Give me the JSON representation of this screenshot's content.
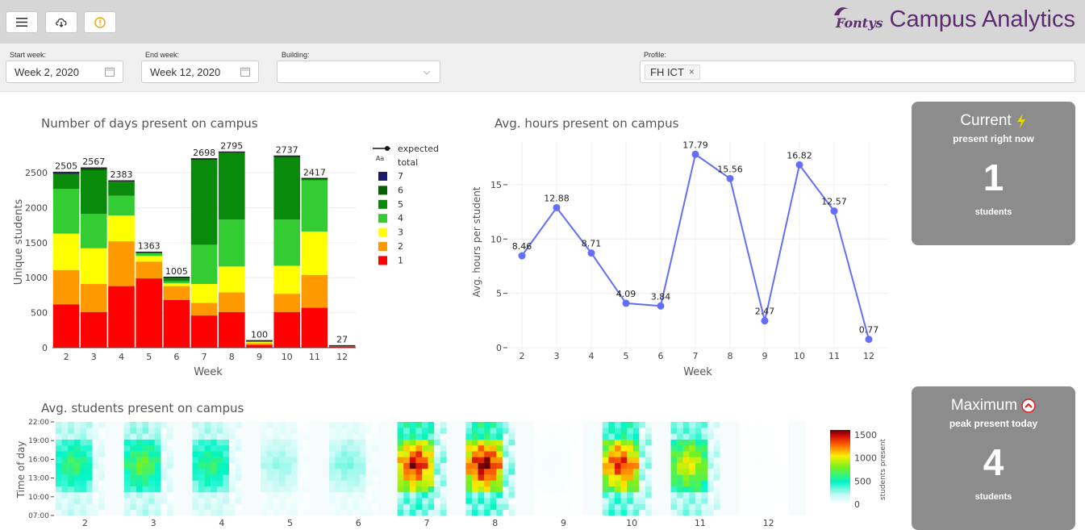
{
  "toolbar": {
    "menu_icon": "hamburger-menu-icon",
    "download_icon": "cloud-download-icon",
    "info_icon": "info-circle-icon",
    "info_color": "#f0a400"
  },
  "brand": {
    "logo_text": "Fontys",
    "title": "Campus Analytics",
    "color": "#5b2c6f"
  },
  "filters": {
    "start_week": {
      "label": "Start week:",
      "value": "Week 2, 2020"
    },
    "end_week": {
      "label": "End week:",
      "value": "Week 12, 2020"
    },
    "building": {
      "label": "Building:",
      "value": ""
    },
    "profile": {
      "label": "Profile:",
      "chips": [
        "FH ICT"
      ]
    }
  },
  "days_chart": {
    "title": "Number of days present on campus",
    "ylabel": "Unique students",
    "xlabel": "Week",
    "yticks": [
      "0",
      "500",
      "1000",
      "1500",
      "2000",
      "2500"
    ],
    "weeks": [
      "2",
      "3",
      "4",
      "5",
      "6",
      "7",
      "8",
      "9",
      "10",
      "11",
      "12"
    ],
    "legend_title": "Aa",
    "legend_items": [
      {
        "label": "expected",
        "type": "line"
      },
      {
        "label": "total",
        "type": "text"
      },
      {
        "label": "7",
        "color": "#1a1a6e"
      },
      {
        "label": "6",
        "color": "#006400"
      },
      {
        "label": "5",
        "color": "#0a8a0a"
      },
      {
        "label": "4",
        "color": "#33cc33"
      },
      {
        "label": "3",
        "color": "#ffff00"
      },
      {
        "label": "2",
        "color": "#ff9900"
      },
      {
        "label": "1",
        "color": "#ff0000"
      }
    ]
  },
  "hours_chart": {
    "title": "Avg. hours present on campus",
    "ylabel": "Avg. hours per student",
    "xlabel": "Week",
    "yticks": [
      "0",
      "5",
      "10",
      "15"
    ],
    "line_color": "#636efa"
  },
  "heatmap": {
    "title": "Avg. students present on campus",
    "ylabel": "Time of day",
    "yticks": [
      "22:00",
      "19:00",
      "16:00",
      "13:00",
      "10:00",
      "07:00"
    ],
    "weeks": [
      "2",
      "3",
      "4",
      "5",
      "6",
      "7",
      "8",
      "9",
      "10",
      "11",
      "12"
    ],
    "colorbar_label": "students present",
    "colorbar_ticks": [
      "1500",
      "1000",
      "500",
      "0"
    ]
  },
  "kpi_current": {
    "title": "Current",
    "icon": "lightning-icon",
    "subtitle": "present right now",
    "value": "1",
    "unit": "students"
  },
  "kpi_maximum": {
    "title": "Maximum",
    "icon": "chevron-up-circle-icon",
    "subtitle": "peak present today",
    "value": "4",
    "unit": "students"
  },
  "chart_data": [
    {
      "type": "bar",
      "title": "Number of days present on campus",
      "xlabel": "Week",
      "ylabel": "Unique students",
      "ylim": [
        0,
        2950
      ],
      "categories": [
        "2",
        "3",
        "4",
        "5",
        "6",
        "7",
        "8",
        "9",
        "10",
        "11",
        "12"
      ],
      "totals": [
        2505,
        2567,
        2383,
        1363,
        1005,
        2698,
        2795,
        100,
        2737,
        2417,
        27
      ],
      "series": [
        {
          "name": "1",
          "values": [
            620,
            510,
            880,
            990,
            680,
            460,
            510,
            40,
            510,
            570,
            15
          ]
        },
        {
          "name": "2",
          "values": [
            490,
            400,
            640,
            240,
            200,
            180,
            280,
            25,
            260,
            470,
            6
          ]
        },
        {
          "name": "3",
          "values": [
            520,
            510,
            370,
            80,
            40,
            270,
            370,
            15,
            400,
            620,
            3
          ]
        },
        {
          "name": "4",
          "values": [
            640,
            490,
            280,
            40,
            30,
            560,
            670,
            10,
            660,
            730,
            2
          ]
        },
        {
          "name": "5",
          "values": [
            200,
            620,
            200,
            13,
            55,
            1210,
            950,
            7,
            880,
            27,
            1
          ]
        },
        {
          "name": "6",
          "values": [
            20,
            30,
            10,
            0,
            0,
            15,
            12,
            2,
            20,
            0,
            0
          ]
        },
        {
          "name": "7",
          "values": [
            15,
            7,
            3,
            0,
            0,
            3,
            3,
            1,
            7,
            0,
            0
          ]
        }
      ],
      "legend": "right"
    },
    {
      "type": "line",
      "title": "Avg. hours present on campus",
      "xlabel": "Week",
      "ylabel": "Avg. hours per student",
      "ylim": [
        0,
        19
      ],
      "x": [
        "2",
        "3",
        "4",
        "5",
        "6",
        "7",
        "8",
        "9",
        "10",
        "11",
        "12"
      ],
      "y": [
        8.46,
        12.88,
        8.71,
        4.09,
        3.84,
        17.79,
        15.56,
        2.47,
        16.82,
        12.57,
        0.77
      ]
    },
    {
      "type": "heatmap",
      "title": "Avg. students present on campus",
      "ylabel": "Time of day",
      "colorbar": "students present",
      "zlim": [
        0,
        1600
      ],
      "weeks": [
        "2",
        "3",
        "4",
        "5",
        "6",
        "7",
        "8",
        "9",
        "10",
        "11",
        "12"
      ],
      "week_intensity": [
        650,
        750,
        620,
        260,
        300,
        1450,
        1550,
        40,
        1400,
        1000,
        15
      ]
    }
  ]
}
